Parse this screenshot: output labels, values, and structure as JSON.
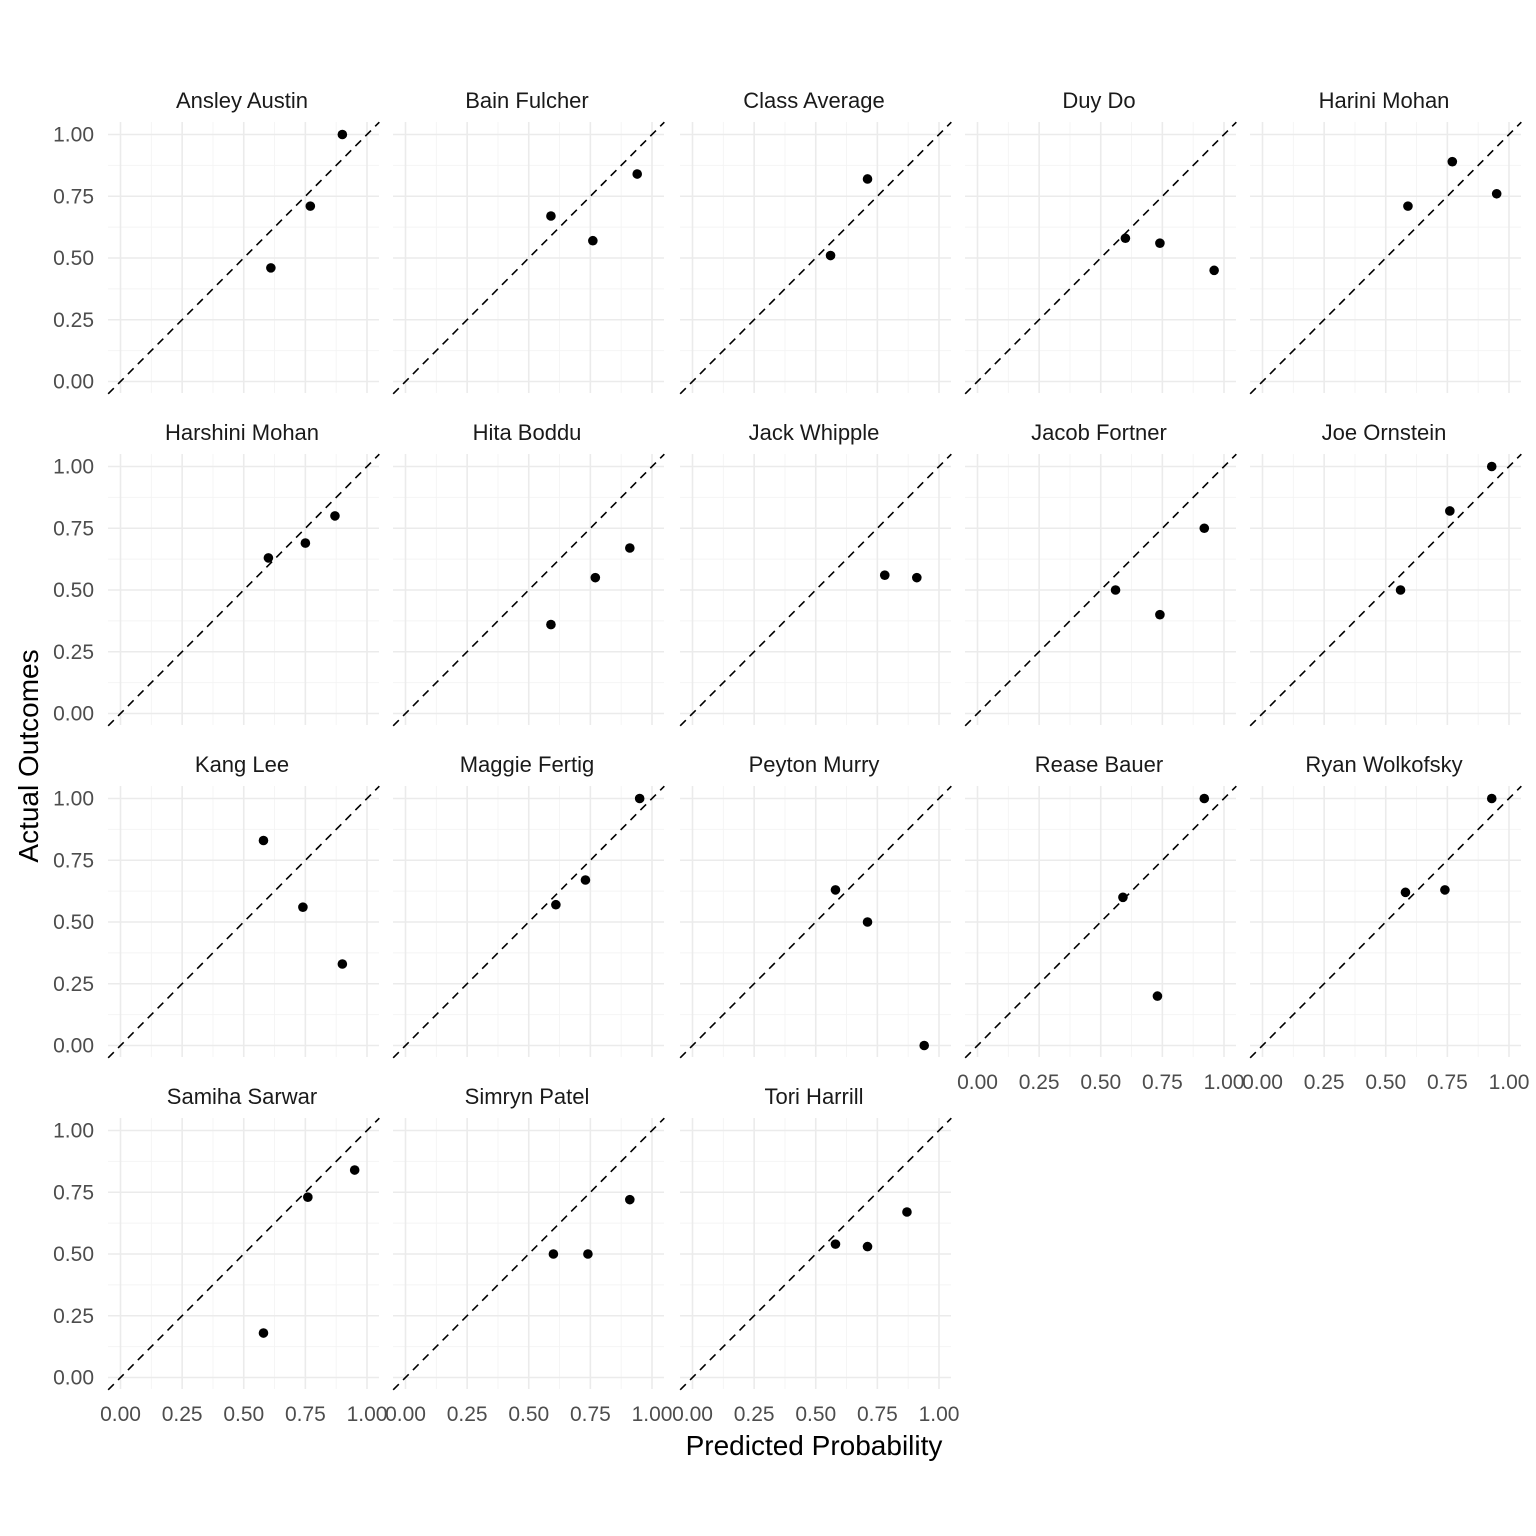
{
  "chart_data": {
    "type": "scatter",
    "xlabel": "Predicted Probability",
    "ylabel": "Actual Outcomes",
    "xlim": [
      0,
      1
    ],
    "ylim": [
      0,
      1
    ],
    "x_ticks": [
      "0.00",
      "0.25",
      "0.50",
      "0.75",
      "1.00"
    ],
    "y_ticks": [
      "0.00",
      "0.25",
      "0.50",
      "0.75",
      "1.00"
    ],
    "grid": true,
    "reference_line": "y = x (dashed)",
    "panels": [
      {
        "title": "Ansley Austin",
        "points": [
          {
            "x": 0.61,
            "y": 0.46
          },
          {
            "x": 0.77,
            "y": 0.71
          },
          {
            "x": 0.9,
            "y": 1.0
          }
        ]
      },
      {
        "title": "Bain Fulcher",
        "points": [
          {
            "x": 0.59,
            "y": 0.67
          },
          {
            "x": 0.76,
            "y": 0.57
          },
          {
            "x": 0.94,
            "y": 0.84
          }
        ]
      },
      {
        "title": "Class Average",
        "points": [
          {
            "x": 0.56,
            "y": 0.51
          },
          {
            "x": 0.71,
            "y": 0.82
          }
        ]
      },
      {
        "title": "Duy Do",
        "points": [
          {
            "x": 0.6,
            "y": 0.58
          },
          {
            "x": 0.74,
            "y": 0.56
          },
          {
            "x": 0.96,
            "y": 0.45
          }
        ]
      },
      {
        "title": "Harini Mohan",
        "points": [
          {
            "x": 0.59,
            "y": 0.71
          },
          {
            "x": 0.77,
            "y": 0.89
          },
          {
            "x": 0.95,
            "y": 0.76
          }
        ]
      },
      {
        "title": "Harshini Mohan",
        "points": [
          {
            "x": 0.6,
            "y": 0.63
          },
          {
            "x": 0.75,
            "y": 0.69
          },
          {
            "x": 0.87,
            "y": 0.8
          }
        ]
      },
      {
        "title": "Hita Boddu",
        "points": [
          {
            "x": 0.59,
            "y": 0.36
          },
          {
            "x": 0.77,
            "y": 0.55
          },
          {
            "x": 0.91,
            "y": 0.67
          }
        ]
      },
      {
        "title": "Jack Whipple",
        "points": [
          {
            "x": 0.78,
            "y": 0.56
          },
          {
            "x": 0.91,
            "y": 0.55
          }
        ]
      },
      {
        "title": "Jacob Fortner",
        "points": [
          {
            "x": 0.56,
            "y": 0.5
          },
          {
            "x": 0.74,
            "y": 0.4
          },
          {
            "x": 0.92,
            "y": 0.75
          }
        ]
      },
      {
        "title": "Joe Ornstein",
        "points": [
          {
            "x": 0.56,
            "y": 0.5
          },
          {
            "x": 0.76,
            "y": 0.82
          },
          {
            "x": 0.93,
            "y": 1.0
          }
        ]
      },
      {
        "title": "Kang Lee",
        "points": [
          {
            "x": 0.58,
            "y": 0.83
          },
          {
            "x": 0.74,
            "y": 0.56
          },
          {
            "x": 0.9,
            "y": 0.33
          }
        ]
      },
      {
        "title": "Maggie Fertig",
        "points": [
          {
            "x": 0.61,
            "y": 0.57
          },
          {
            "x": 0.73,
            "y": 0.67
          },
          {
            "x": 0.95,
            "y": 1.0
          }
        ]
      },
      {
        "title": "Peyton Murry",
        "points": [
          {
            "x": 0.58,
            "y": 0.63
          },
          {
            "x": 0.71,
            "y": 0.5
          },
          {
            "x": 0.94,
            "y": 0.0
          }
        ]
      },
      {
        "title": "Rease Bauer",
        "points": [
          {
            "x": 0.59,
            "y": 0.6
          },
          {
            "x": 0.73,
            "y": 0.2
          },
          {
            "x": 0.92,
            "y": 1.0
          }
        ]
      },
      {
        "title": "Ryan Wolkofsky",
        "points": [
          {
            "x": 0.58,
            "y": 0.62
          },
          {
            "x": 0.74,
            "y": 0.63
          },
          {
            "x": 0.93,
            "y": 1.0
          }
        ]
      },
      {
        "title": "Samiha Sarwar",
        "points": [
          {
            "x": 0.58,
            "y": 0.18
          },
          {
            "x": 0.76,
            "y": 0.73
          },
          {
            "x": 0.95,
            "y": 0.84
          }
        ]
      },
      {
        "title": "Simryn Patel",
        "points": [
          {
            "x": 0.6,
            "y": 0.5
          },
          {
            "x": 0.74,
            "y": 0.5
          },
          {
            "x": 0.91,
            "y": 0.72
          }
        ]
      },
      {
        "title": "Tori Harrill",
        "points": [
          {
            "x": 0.58,
            "y": 0.54
          },
          {
            "x": 0.71,
            "y": 0.53
          },
          {
            "x": 0.87,
            "y": 0.67
          }
        ]
      }
    ]
  }
}
